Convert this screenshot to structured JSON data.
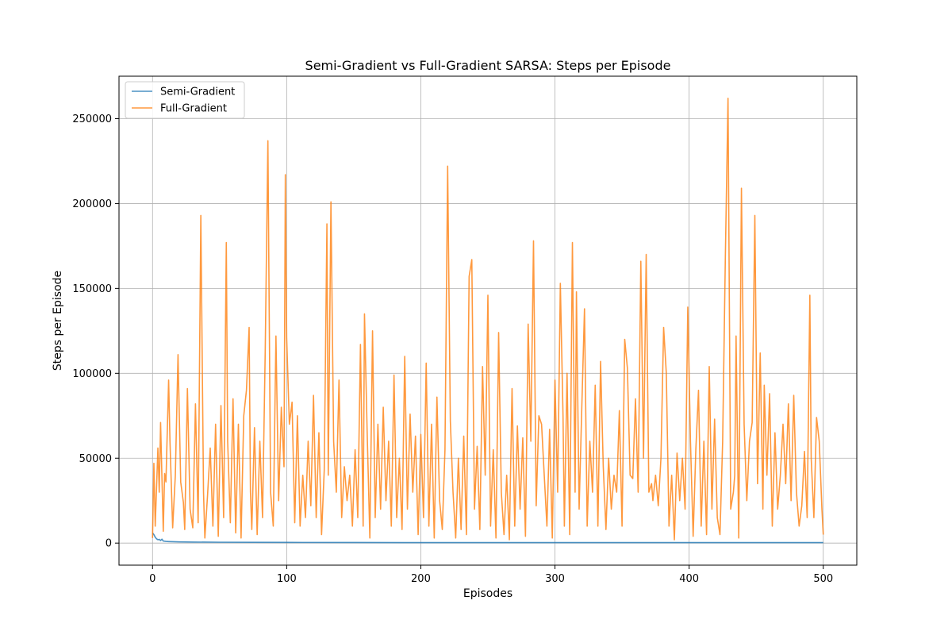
{
  "chart_data": {
    "type": "line",
    "title": "Semi-Gradient vs Full-Gradient SARSA: Steps per Episode",
    "xlabel": "Episodes",
    "ylabel": "Steps per Episode",
    "xlim": [
      -25,
      525
    ],
    "ylim": [
      -13000,
      275000
    ],
    "xticks": [
      0,
      100,
      200,
      300,
      400,
      500
    ],
    "yticks": [
      0,
      50000,
      100000,
      150000,
      200000,
      250000
    ],
    "grid": true,
    "legend_position": "top-left",
    "series": [
      {
        "name": "Semi-Gradient",
        "color": "#1f77b4",
        "x": [
          0,
          1,
          2,
          3,
          4,
          5,
          6,
          7,
          8,
          10,
          12,
          15,
          20,
          30,
          50,
          100,
          150,
          200,
          250,
          300,
          350,
          400,
          450,
          500
        ],
        "values": [
          6000,
          5000,
          3500,
          2500,
          2000,
          2200,
          1500,
          2300,
          1200,
          1000,
          900,
          800,
          700,
          600,
          500,
          400,
          350,
          300,
          300,
          300,
          300,
          300,
          300,
          300
        ]
      },
      {
        "name": "Full-Gradient",
        "color": "#ff7f0e",
        "x": [
          0,
          1,
          2,
          4,
          5,
          6,
          8,
          9,
          10,
          12,
          13,
          15,
          17,
          19,
          21,
          23,
          24,
          26,
          28,
          30,
          32,
          34,
          36,
          38,
          39,
          41,
          43,
          45,
          47,
          49,
          51,
          53,
          55,
          56,
          58,
          60,
          62,
          64,
          66,
          68,
          70,
          72,
          73,
          74,
          76,
          78,
          80,
          82,
          84,
          86,
          88,
          90,
          92,
          94,
          96,
          98,
          99,
          100,
          102,
          104,
          106,
          108,
          110,
          112,
          114,
          116,
          118,
          120,
          122,
          124,
          126,
          128,
          130,
          131,
          133,
          135,
          137,
          139,
          141,
          143,
          145,
          147,
          149,
          151,
          153,
          155,
          157,
          158,
          160,
          162,
          164,
          166,
          168,
          170,
          172,
          174,
          176,
          178,
          180,
          182,
          184,
          186,
          188,
          190,
          192,
          194,
          196,
          198,
          200,
          202,
          204,
          206,
          208,
          210,
          212,
          214,
          216,
          218,
          220,
          222,
          224,
          226,
          228,
          230,
          232,
          234,
          236,
          238,
          240,
          242,
          244,
          246,
          248,
          250,
          252,
          254,
          256,
          258,
          260,
          262,
          264,
          266,
          268,
          270,
          272,
          274,
          276,
          278,
          280,
          282,
          284,
          286,
          288,
          290,
          292,
          294,
          296,
          298,
          300,
          302,
          304,
          306,
          307,
          309,
          311,
          313,
          315,
          316,
          318,
          320,
          322,
          324,
          326,
          328,
          330,
          332,
          334,
          336,
          338,
          340,
          342,
          344,
          346,
          348,
          350,
          352,
          354,
          356,
          358,
          360,
          362,
          364,
          366,
          368,
          370,
          372,
          373,
          375,
          377,
          379,
          381,
          383,
          385,
          387,
          389,
          391,
          393,
          395,
          397,
          399,
          401,
          403,
          405,
          407,
          409,
          411,
          413,
          415,
          417,
          419,
          421,
          423,
          425,
          427,
          429,
          431,
          433,
          434,
          435,
          437,
          439,
          441,
          443,
          445,
          447,
          449,
          451,
          453,
          455,
          456,
          458,
          460,
          462,
          464,
          466,
          468,
          470,
          472,
          474,
          476,
          478,
          480,
          482,
          484,
          486,
          488,
          490,
          491,
          493,
          495,
          497,
          499,
          500
        ],
        "values": [
          3000,
          47000,
          10000,
          56000,
          30000,
          71000,
          7000,
          41000,
          36000,
          96000,
          60000,
          9000,
          40000,
          111000,
          36000,
          24000,
          8000,
          91000,
          20000,
          9000,
          82000,
          12000,
          193000,
          30000,
          3000,
          28000,
          56000,
          10000,
          70000,
          4000,
          81000,
          15000,
          177000,
          60000,
          12000,
          85000,
          6000,
          70000,
          3000,
          75000,
          90000,
          127000,
          30000,
          8000,
          68000,
          5000,
          60000,
          15000,
          113000,
          237000,
          30000,
          10000,
          122000,
          25000,
          80000,
          45000,
          217000,
          121000,
          70000,
          83000,
          12000,
          75000,
          10000,
          40000,
          15000,
          60000,
          22000,
          87000,
          15000,
          65000,
          5000,
          43000,
          188000,
          40000,
          201000,
          60000,
          30000,
          96000,
          15000,
          45000,
          25000,
          40000,
          10000,
          55000,
          15000,
          117000,
          10000,
          135000,
          65000,
          3000,
          125000,
          15000,
          70000,
          20000,
          80000,
          25000,
          60000,
          10000,
          99000,
          15000,
          50000,
          8000,
          110000,
          20000,
          76000,
          30000,
          63000,
          5000,
          64000,
          15000,
          106000,
          10000,
          70000,
          3000,
          86000,
          25000,
          8000,
          55000,
          222000,
          72000,
          30000,
          3000,
          50000,
          8000,
          63000,
          5000,
          157000,
          167000,
          20000,
          57000,
          8000,
          104000,
          40000,
          146000,
          10000,
          55000,
          3000,
          124000,
          30000,
          5000,
          40000,
          2000,
          91000,
          10000,
          69000,
          20000,
          62000,
          4000,
          129000,
          60000,
          178000,
          22000,
          75000,
          70000,
          40000,
          10000,
          67000,
          3000,
          96000,
          30000,
          153000,
          75000,
          10000,
          100000,
          5000,
          177000,
          30000,
          148000,
          20000,
          80000,
          138000,
          10000,
          60000,
          30000,
          93000,
          10000,
          107000,
          45000,
          8000,
          50000,
          20000,
          40000,
          30000,
          78000,
          10000,
          120000,
          103000,
          40000,
          38000,
          85000,
          30000,
          166000,
          50000,
          170000,
          30000,
          35000,
          25000,
          40000,
          22000,
          50000,
          127000,
          100000,
          10000,
          40000,
          2000,
          53000,
          25000,
          50000,
          20000,
          139000,
          60000,
          4000,
          55000,
          90000,
          10000,
          60000,
          5000,
          104000,
          20000,
          73000,
          15000,
          5000,
          60000,
          168000,
          262000,
          20000,
          30000,
          40000,
          122000,
          3000,
          209000,
          70000,
          25000,
          60000,
          71000,
          193000,
          35000,
          112000,
          20000,
          93000,
          40000,
          88000,
          10000,
          65000,
          20000,
          40000,
          70000,
          35000,
          82000,
          25000,
          87000,
          30000,
          10000,
          22000,
          54000,
          15000,
          146000,
          50000,
          15000,
          74000,
          60000,
          20000,
          5000
        ]
      }
    ]
  }
}
